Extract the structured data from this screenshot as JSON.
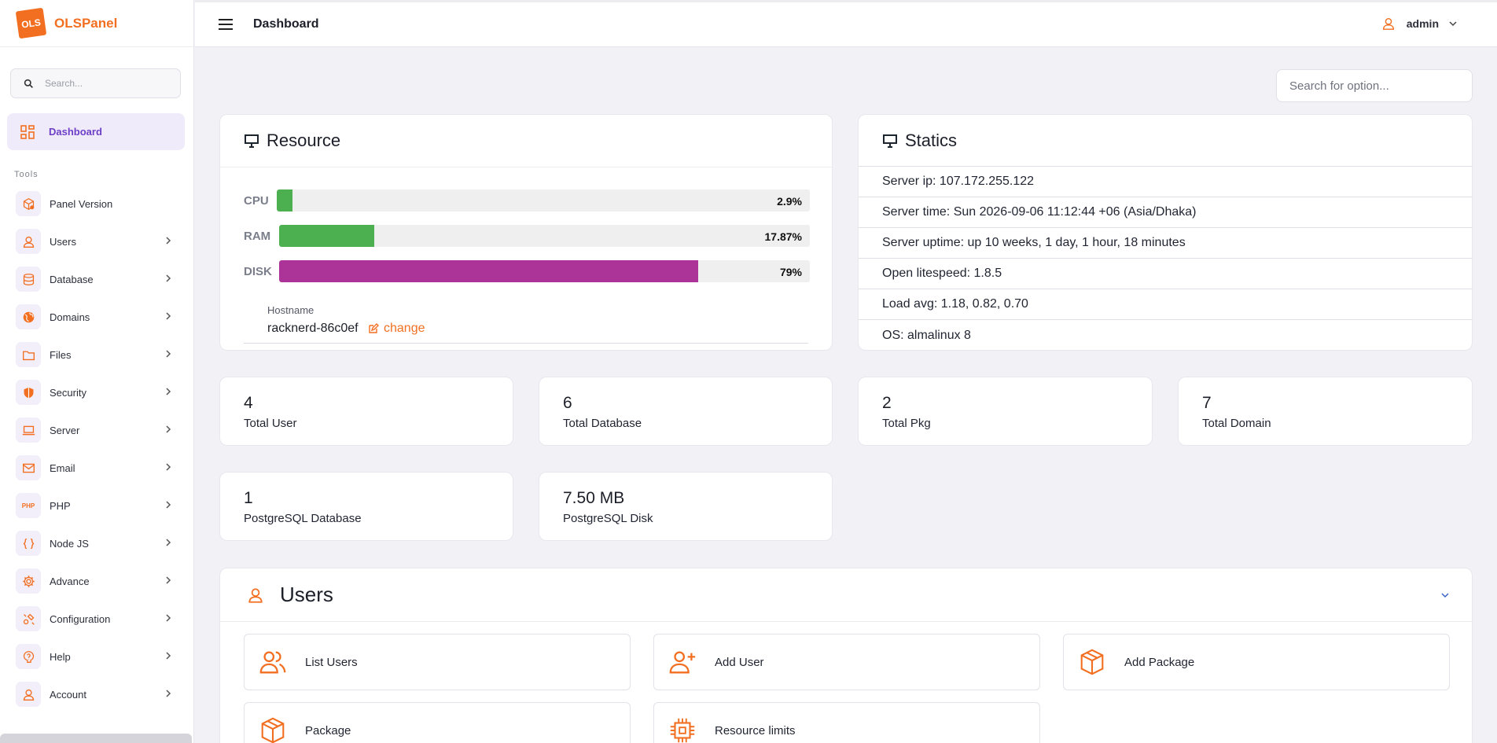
{
  "brand": {
    "name": "OLSPanel",
    "logo_text": "OLS"
  },
  "sidebar": {
    "search_placeholder": "Search...",
    "active_item": "Dashboard",
    "section_title": "Tools",
    "items": [
      {
        "label": "Panel Version",
        "icon": "box-icon",
        "has_chevron": false
      },
      {
        "label": "Users",
        "icon": "user-icon",
        "has_chevron": true
      },
      {
        "label": "Database",
        "icon": "database-icon",
        "has_chevron": true
      },
      {
        "label": "Domains",
        "icon": "globe-icon",
        "has_chevron": true
      },
      {
        "label": "Files",
        "icon": "folder-icon",
        "has_chevron": true
      },
      {
        "label": "Security",
        "icon": "shield-icon",
        "has_chevron": true
      },
      {
        "label": "Server",
        "icon": "laptop-icon",
        "has_chevron": true
      },
      {
        "label": "Email",
        "icon": "mail-icon",
        "has_chevron": true
      },
      {
        "label": "PHP",
        "icon": "php-icon",
        "has_chevron": true
      },
      {
        "label": "Node JS",
        "icon": "braces-icon",
        "has_chevron": true
      },
      {
        "label": "Advance",
        "icon": "gear-icon",
        "has_chevron": true
      },
      {
        "label": "Configuration",
        "icon": "config-icon",
        "has_chevron": true
      },
      {
        "label": "Help",
        "icon": "help-icon",
        "has_chevron": true
      },
      {
        "label": "Account",
        "icon": "account-icon",
        "has_chevron": true
      }
    ]
  },
  "header": {
    "title": "Dashboard",
    "user": "admin"
  },
  "main": {
    "option_search_placeholder": "Search for option...",
    "resource": {
      "title": "Resource",
      "rows": [
        {
          "label": "CPU",
          "percent_text": "2.9%",
          "value": 2.9,
          "color": "#4caf50"
        },
        {
          "label": "RAM",
          "percent_text": "17.87%",
          "value": 17.87,
          "color": "#4caf50"
        },
        {
          "label": "DISK",
          "percent_text": "79%",
          "value": 79,
          "color": "#ac3397"
        }
      ],
      "hostname_label": "Hostname",
      "hostname": "racknerd-86c0ef",
      "change_label": "change"
    },
    "statics": {
      "title": "Statics",
      "rows": [
        "Server ip: 107.172.255.122",
        "Server time: Sun 2026-09-06 11:12:44 +06 (Asia/Dhaka)",
        "Server uptime: up 10 weeks, 1 day, 1 hour, 18 minutes",
        "Open litespeed: 1.8.5",
        "Load avg: 1.18, 0.82, 0.70",
        "OS: almalinux 8"
      ]
    },
    "stats": [
      {
        "value": "4",
        "label": "Total User"
      },
      {
        "value": "6",
        "label": "Total Database"
      },
      {
        "value": "2",
        "label": "Total Pkg"
      },
      {
        "value": "7",
        "label": "Total Domain"
      },
      {
        "value": "1",
        "label": "PostgreSQL Database"
      },
      {
        "value": "7.50 MB",
        "label": "PostgreSQL Disk"
      }
    ],
    "users_section": {
      "title": "Users",
      "actions": [
        {
          "label": "List Users",
          "icon": "users-icon"
        },
        {
          "label": "Add User",
          "icon": "user-plus-icon"
        },
        {
          "label": "Add Package",
          "icon": "package-icon"
        },
        {
          "label": "Package",
          "icon": "package-icon"
        },
        {
          "label": "Resource limits",
          "icon": "chip-icon"
        }
      ]
    }
  },
  "colors": {
    "accent": "#f26f21",
    "active": "#6c3fc6",
    "active_bg": "#f0ebfb"
  }
}
